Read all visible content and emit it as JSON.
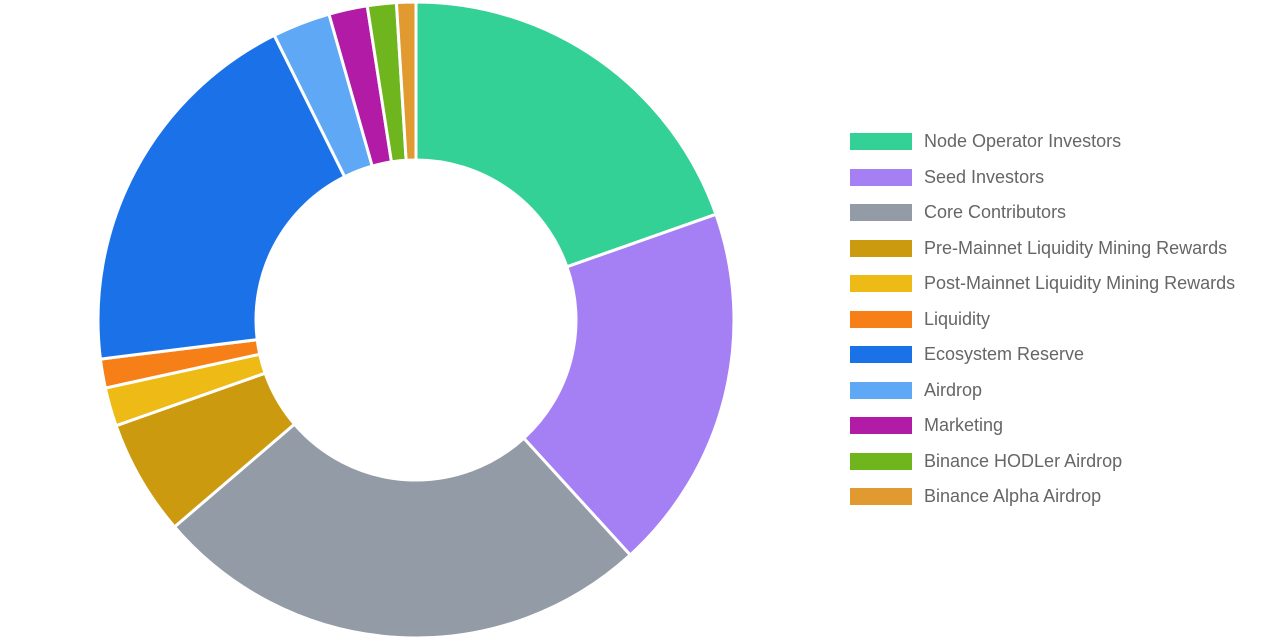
{
  "chart_data": {
    "type": "pie",
    "donut": true,
    "legend_position": "right",
    "series": [
      {
        "name": "Node Operator Investors",
        "value": 20.0,
        "color": "#33d195"
      },
      {
        "name": "Seed Investors",
        "value": 19.0,
        "color": "#a57ff4"
      },
      {
        "name": "Core Contributors",
        "value": 26.0,
        "color": "#939ba6"
      },
      {
        "name": "Pre-Mainnet Liquidity Mining Rewards",
        "value": 6.0,
        "color": "#cc9a0e"
      },
      {
        "name": "Post-Mainnet Liquidity Mining Rewards",
        "value": 2.0,
        "color": "#eeba16"
      },
      {
        "name": "Liquidity",
        "value": 1.5,
        "color": "#f77f17"
      },
      {
        "name": "Ecosystem Reserve",
        "value": 20.0,
        "color": "#1b72e8"
      },
      {
        "name": "Airdrop",
        "value": 3.0,
        "color": "#5ea8f5"
      },
      {
        "name": "Marketing",
        "value": 2.0,
        "color": "#b11ba6"
      },
      {
        "name": "Binance HODLer Airdrop",
        "value": 1.5,
        "color": "#6fb61e"
      },
      {
        "name": "Binance Alpha Airdrop",
        "value": 1.0,
        "color": "#e09a2f"
      }
    ]
  }
}
